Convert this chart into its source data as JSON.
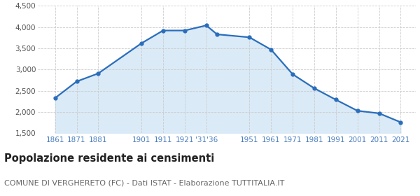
{
  "years": [
    1861,
    1871,
    1881,
    1901,
    1911,
    1921,
    1931,
    1936,
    1951,
    1961,
    1971,
    1981,
    1991,
    2001,
    2011,
    2021
  ],
  "population": [
    2330,
    2720,
    2910,
    3620,
    3920,
    3920,
    4040,
    3830,
    3760,
    3470,
    2890,
    2560,
    2290,
    2030,
    1970,
    1760
  ],
  "line_color": "#2a6ebb",
  "fill_color": "#daeaf7",
  "marker_color": "#2a6ebb",
  "background_color": "#ffffff",
  "grid_color": "#cccccc",
  "ylim": [
    1500,
    4500
  ],
  "yticks": [
    1500,
    2000,
    2500,
    3000,
    3500,
    4000,
    4500
  ],
  "title": "Popolazione residente ai censimenti",
  "subtitle": "COMUNE DI VERGHERETO (FC) - Dati ISTAT - Elaborazione TUTTITALIA.IT",
  "title_fontsize": 10.5,
  "subtitle_fontsize": 8,
  "tick_color": "#4a7ebf",
  "ytick_color": "#555555",
  "tick_fontsize": 7.5,
  "x_tick_positions": [
    1861,
    1871,
    1881,
    1901,
    1911,
    1921,
    1931,
    1951,
    1961,
    1971,
    1981,
    1991,
    2001,
    2011,
    2021
  ],
  "x_tick_labels": [
    "1861",
    "1871",
    "1881",
    "1901",
    "1911",
    "1921",
    "’31″36",
    "1951",
    "1961",
    "1971",
    "1981",
    "1991",
    "2001",
    "2011",
    "2021"
  ]
}
